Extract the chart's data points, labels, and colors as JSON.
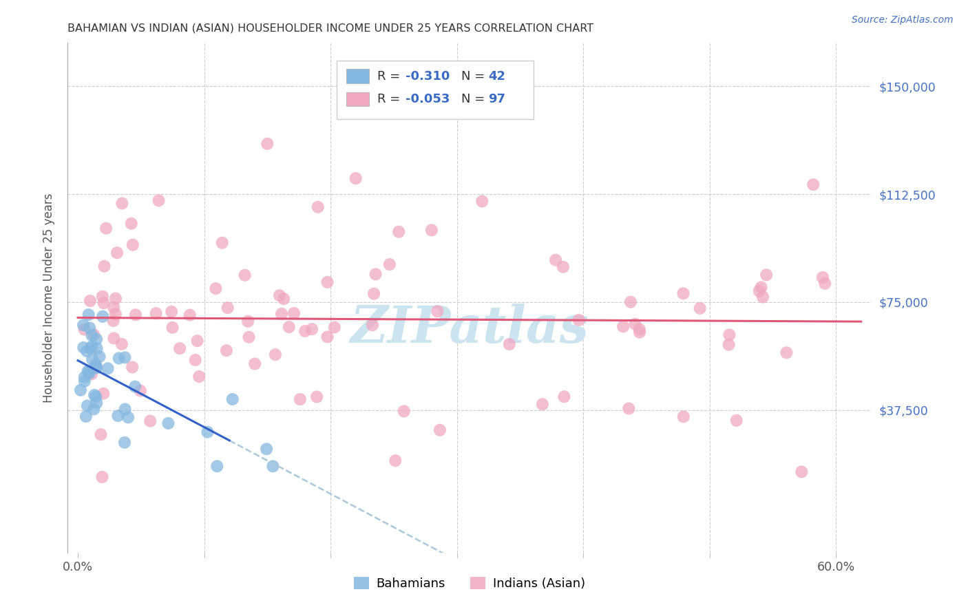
{
  "title": "BAHAMIAN VS INDIAN (ASIAN) HOUSEHOLDER INCOME UNDER 25 YEARS CORRELATION CHART",
  "source": "Source: ZipAtlas.com",
  "ylabel": "Householder Income Under 25 years",
  "background_color": "#ffffff",
  "grid_color": "#cccccc",
  "title_color": "#333333",
  "title_fontsize": 11.5,
  "ytick_color": "#4472c4",
  "watermark_text": "ZIPatlas",
  "watermark_color": "#cce4f0",
  "legend_r1": "-0.310",
  "legend_n1": "42",
  "legend_r2": "-0.053",
  "legend_n2": "97",
  "legend_color_val": "#3a6bc4",
  "legend_label_color": "#333333",
  "bahamian_color": "#85b8e0",
  "indian_color": "#f0a8c0",
  "regression_color_blue": "#3060c8",
  "regression_color_pink": "#e05878",
  "regression_dash_color": "#aac8dc",
  "ytick_vals": [
    0,
    37500,
    75000,
    112500,
    150000
  ],
  "ytick_labels": [
    "",
    "$37,500",
    "$75,000",
    "$112,500",
    "$150,000"
  ],
  "xtick_vals": [
    0.0,
    0.1,
    0.2,
    0.3,
    0.4,
    0.5,
    0.6
  ],
  "xtick_labels": [
    "0.0%",
    "",
    "",
    "",
    "",
    "",
    "60.0%"
  ],
  "seed": 123
}
